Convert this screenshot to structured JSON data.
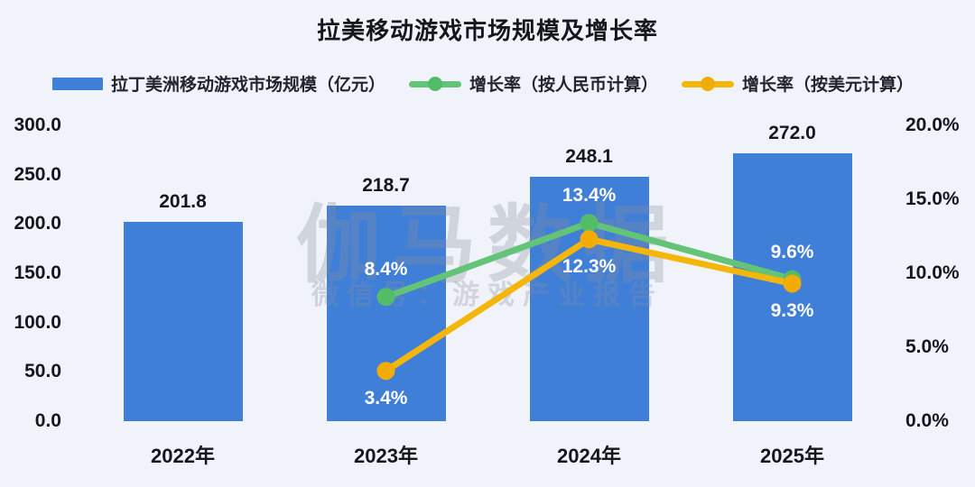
{
  "title": "拉美移动游戏市场规模及增长率",
  "watermark": {
    "line1": "伽马数据",
    "line2": "微信号：游戏产业报告"
  },
  "colors": {
    "background": "#F0F3FA",
    "bar": "#407FD8",
    "green_line": "#63C377",
    "green_dot": "#53BC68",
    "yellow_line": "#F5B60B",
    "yellow_dot": "#F3AC05",
    "text": "#15171C",
    "label_on_bar": "#FFFFFF",
    "watermark": "#878E9B"
  },
  "chart_data": {
    "type": "bar",
    "categories": [
      "2022年",
      "2023年",
      "2024年",
      "2025年"
    ],
    "series": [
      {
        "name": "拉丁美洲移动游戏市场规模（亿元）",
        "kind": "bar",
        "axis": "left",
        "values": [
          201.8,
          218.7,
          248.1,
          272.0
        ],
        "labels": [
          "201.8",
          "218.7",
          "248.1",
          "272.0"
        ],
        "color": "#407FD8"
      },
      {
        "name": "增长率（按人民币计算）",
        "kind": "line",
        "axis": "right",
        "values": [
          null,
          8.4,
          13.4,
          9.6
        ],
        "labels": [
          null,
          "8.4%",
          "13.4%",
          "9.6%"
        ],
        "color": "#63C377",
        "dot_color": "#53BC68",
        "label_side": "above"
      },
      {
        "name": "增长率（按美元计算）",
        "kind": "line",
        "axis": "right",
        "values": [
          null,
          3.4,
          12.3,
          9.3
        ],
        "labels": [
          null,
          "3.4%",
          "12.3%",
          "9.3%"
        ],
        "color": "#F5B60B",
        "dot_color": "#F3AC05",
        "label_side": "below"
      }
    ],
    "left_axis": {
      "min": 0,
      "max": 300,
      "ticks": [
        "300.0",
        "250.0",
        "200.0",
        "150.0",
        "100.0",
        "50.0",
        "0.0"
      ]
    },
    "right_axis": {
      "min": 0,
      "max": 20,
      "ticks": [
        "20.0%",
        "15.0%",
        "10.0%",
        "5.0%",
        "0.0%"
      ]
    },
    "grid": false,
    "legend_position": "top"
  }
}
